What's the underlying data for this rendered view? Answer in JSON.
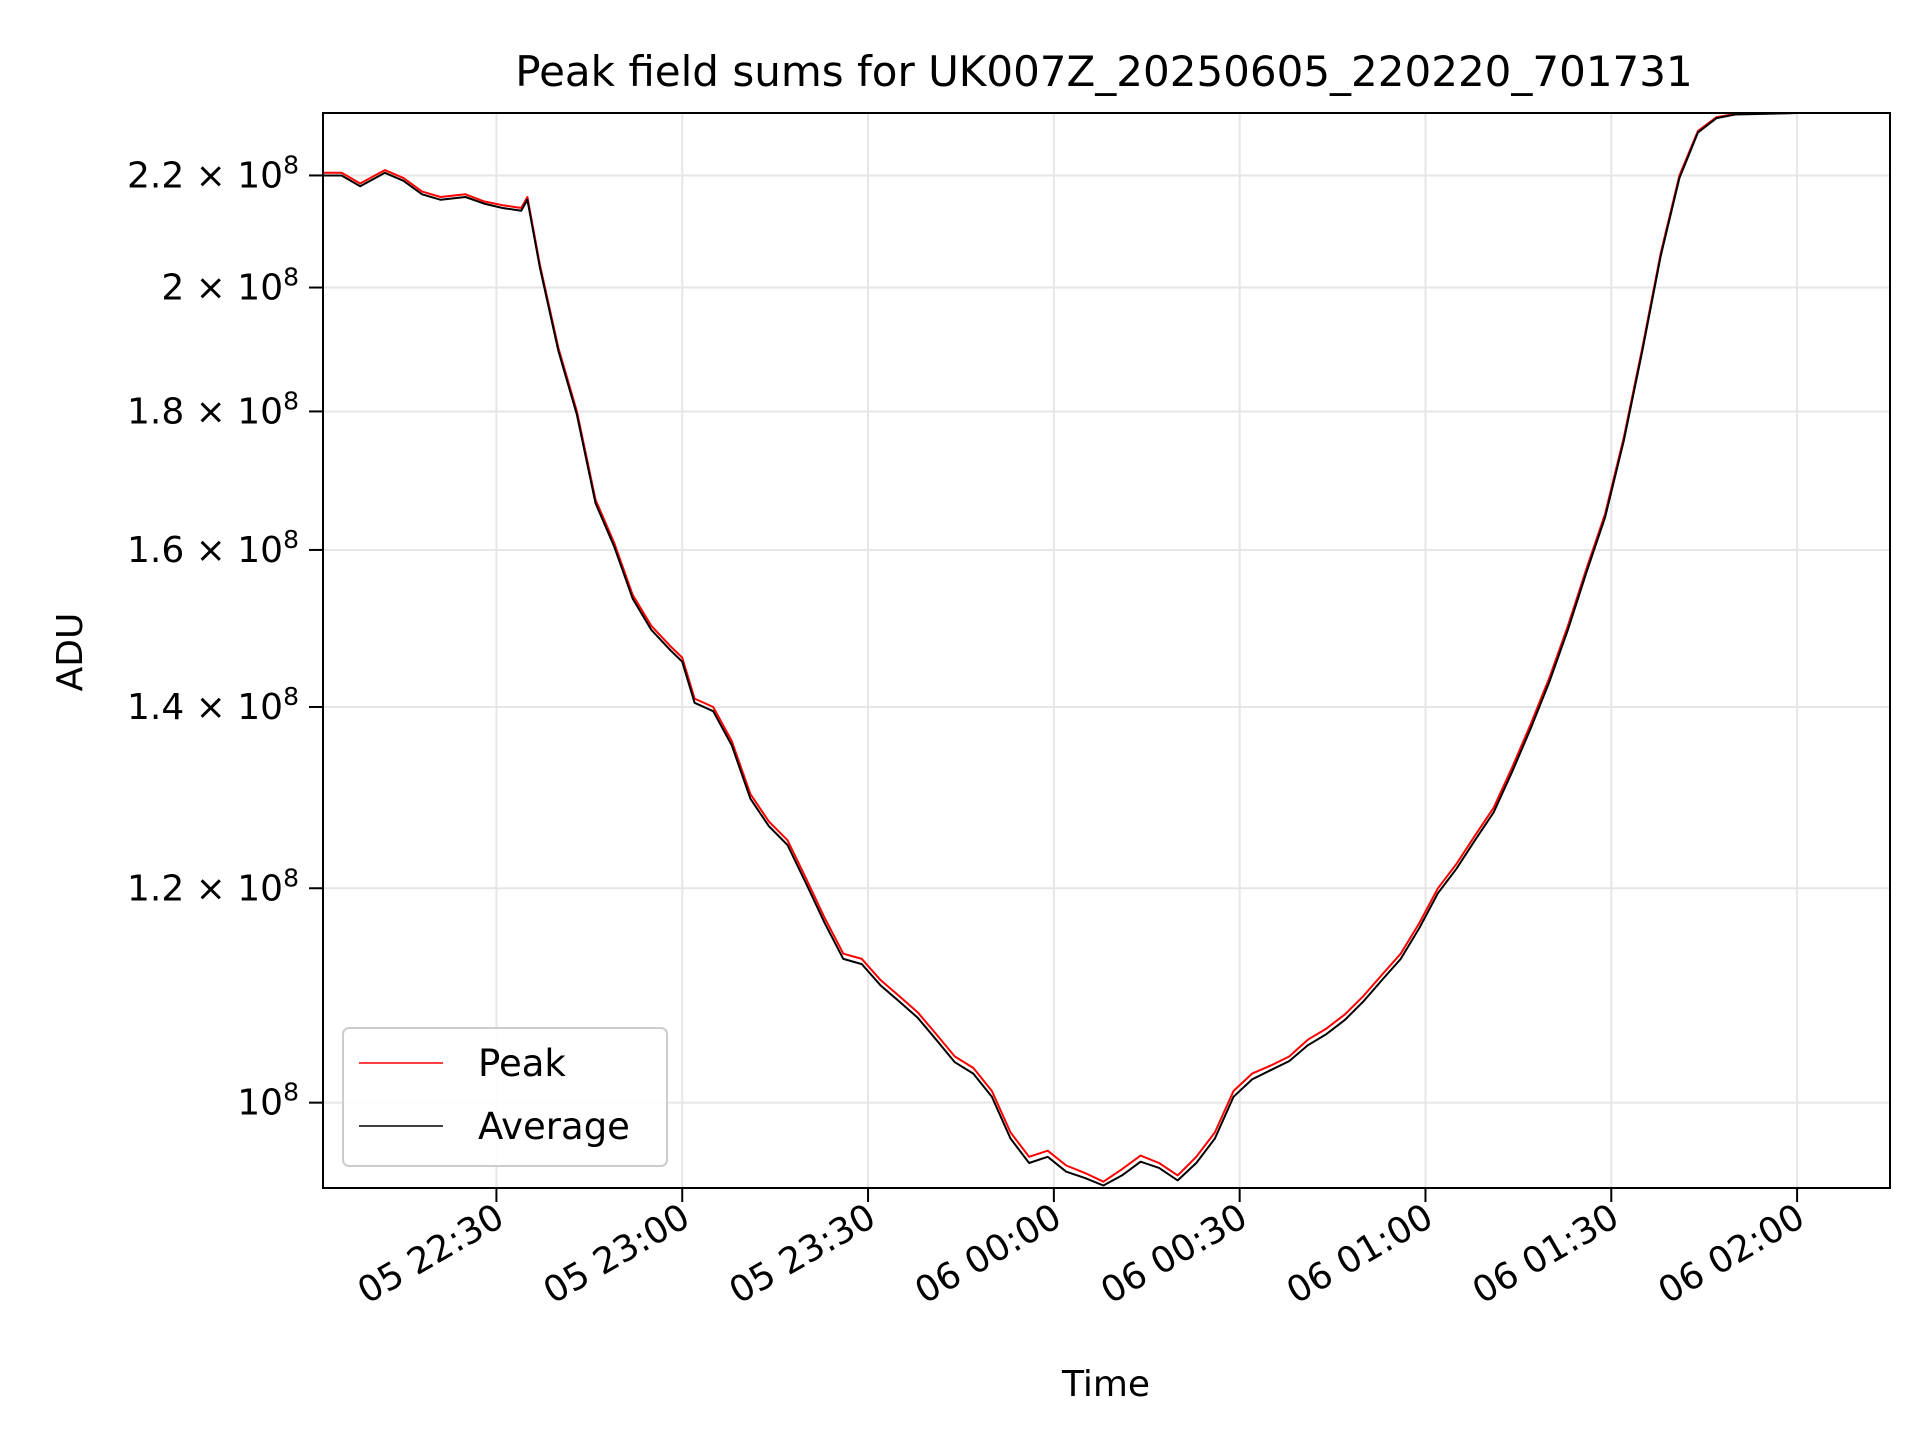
{
  "chart_data": {
    "type": "line",
    "title": "Peak field sums for UK007Z_20250605_220220_701731",
    "xlabel": "Time",
    "ylabel": "ADU",
    "y_scale": "log",
    "ylim": [
      93000000,
      232000000
    ],
    "xlim": [
      "05 22:02",
      "06 02:15"
    ],
    "grid": true,
    "legend_position": "lower-left",
    "x_ticks": [
      {
        "t": "05 22:30",
        "label": "05 22:30"
      },
      {
        "t": "05 23:00",
        "label": "05 23:00"
      },
      {
        "t": "05 23:30",
        "label": "05 23:30"
      },
      {
        "t": "06 00:00",
        "label": "06 00:00"
      },
      {
        "t": "06 00:30",
        "label": "06 00:30"
      },
      {
        "t": "06 01:00",
        "label": "06 01:00"
      },
      {
        "t": "06 01:30",
        "label": "06 01:30"
      },
      {
        "t": "06 02:00",
        "label": "06 02:00"
      }
    ],
    "y_ticks": [
      {
        "value": 100000000,
        "mantissa": "10",
        "exponent": "8"
      },
      {
        "value": 120000000,
        "mantissa": "1.2 × 10",
        "exponent": "8"
      },
      {
        "value": 140000000,
        "mantissa": "1.4 × 10",
        "exponent": "8"
      },
      {
        "value": 160000000,
        "mantissa": "1.6 × 10",
        "exponent": "8"
      },
      {
        "value": 180000000,
        "mantissa": "1.8 × 10",
        "exponent": "8"
      },
      {
        "value": 200000000,
        "mantissa": "2 × 10",
        "exponent": "8"
      },
      {
        "value": 220000000,
        "mantissa": "2.2 × 10",
        "exponent": "8"
      }
    ],
    "series": [
      {
        "name": "Peak",
        "color": "#ff0000",
        "points": [
          [
            "05 22:02",
            220500000
          ],
          [
            "05 22:05",
            220500000
          ],
          [
            "05 22:08",
            218500000
          ],
          [
            "05 22:12",
            221000000
          ],
          [
            "05 22:15",
            219500000
          ],
          [
            "05 22:18",
            217000000
          ],
          [
            "05 22:21",
            216000000
          ],
          [
            "05 22:25",
            216500000
          ],
          [
            "05 22:28",
            215200000
          ],
          [
            "05 22:31",
            214500000
          ],
          [
            "05 22:34",
            214000000
          ],
          [
            "05 22:35",
            216000000
          ],
          [
            "05 22:37",
            204000000
          ],
          [
            "05 22:40",
            190000000
          ],
          [
            "05 22:43",
            180000000
          ],
          [
            "05 22:46",
            167000000
          ],
          [
            "05 22:49",
            161000000
          ],
          [
            "05 22:52",
            154000000
          ],
          [
            "05 22:55",
            150000000
          ],
          [
            "05 22:58",
            147500000
          ],
          [
            "05 23:00",
            146000000
          ],
          [
            "05 23:02",
            141000000
          ],
          [
            "05 23:05",
            140000000
          ],
          [
            "05 23:08",
            136000000
          ],
          [
            "05 23:11",
            130000000
          ],
          [
            "05 23:14",
            127000000
          ],
          [
            "05 23:17",
            125000000
          ],
          [
            "05 23:20",
            121000000
          ],
          [
            "05 23:23",
            117000000
          ],
          [
            "05 23:26",
            113500000
          ],
          [
            "05 23:29",
            113000000
          ],
          [
            "05 23:32",
            111000000
          ],
          [
            "05 23:35",
            109500000
          ],
          [
            "05 23:38",
            108000000
          ],
          [
            "05 23:41",
            106000000
          ],
          [
            "05 23:44",
            104000000
          ],
          [
            "05 23:47",
            103000000
          ],
          [
            "05 23:50",
            101000000
          ],
          [
            "05 23:53",
            97500000
          ],
          [
            "05 23:56",
            95500000
          ],
          [
            "05 23:59",
            96000000
          ],
          [
            "06 00:02",
            94800000
          ],
          [
            "06 00:05",
            94200000
          ],
          [
            "06 00:08",
            93500000
          ],
          [
            "06 00:11",
            94500000
          ],
          [
            "06 00:14",
            95600000
          ],
          [
            "06 00:17",
            95000000
          ],
          [
            "06 00:20",
            94000000
          ],
          [
            "06 00:23",
            95500000
          ],
          [
            "06 00:26",
            97500000
          ],
          [
            "06 00:29",
            101000000
          ],
          [
            "06 00:32",
            102500000
          ],
          [
            "06 00:35",
            103200000
          ],
          [
            "06 00:38",
            104000000
          ],
          [
            "06 00:41",
            105500000
          ],
          [
            "06 00:44",
            106500000
          ],
          [
            "06 00:47",
            107800000
          ],
          [
            "06 00:50",
            109500000
          ],
          [
            "06 00:53",
            111500000
          ],
          [
            "06 00:56",
            113500000
          ],
          [
            "06 00:59",
            116500000
          ],
          [
            "06 01:02",
            120000000
          ],
          [
            "06 01:05",
            122500000
          ],
          [
            "06 01:08",
            125500000
          ],
          [
            "06 01:11",
            128500000
          ],
          [
            "06 01:14",
            133000000
          ],
          [
            "06 01:17",
            138000000
          ],
          [
            "06 01:20",
            143500000
          ],
          [
            "06 01:23",
            150000000
          ],
          [
            "06 01:26",
            157500000
          ],
          [
            "06 01:29",
            165000000
          ],
          [
            "06 01:32",
            176000000
          ],
          [
            "06 01:35",
            190000000
          ],
          [
            "06 01:38",
            206000000
          ],
          [
            "06 01:41",
            220000000
          ],
          [
            "06 01:44",
            228500000
          ],
          [
            "06 01:47",
            231200000
          ],
          [
            "06 01:50",
            231800000
          ],
          [
            "06 02:00",
            232000000
          ]
        ]
      },
      {
        "name": "Average",
        "color": "#000000",
        "points": [
          [
            "05 22:02",
            220000000
          ],
          [
            "05 22:05",
            220000000
          ],
          [
            "05 22:08",
            218000000
          ],
          [
            "05 22:12",
            220500000
          ],
          [
            "05 22:15",
            219000000
          ],
          [
            "05 22:18",
            216500000
          ],
          [
            "05 22:21",
            215500000
          ],
          [
            "05 22:25",
            216000000
          ],
          [
            "05 22:28",
            214800000
          ],
          [
            "05 22:31",
            214000000
          ],
          [
            "05 22:34",
            213500000
          ],
          [
            "05 22:35",
            215500000
          ],
          [
            "05 22:37",
            203500000
          ],
          [
            "05 22:40",
            189500000
          ],
          [
            "05 22:43",
            179500000
          ],
          [
            "05 22:46",
            166500000
          ],
          [
            "05 22:49",
            160500000
          ],
          [
            "05 22:52",
            153500000
          ],
          [
            "05 22:55",
            149500000
          ],
          [
            "05 22:58",
            147000000
          ],
          [
            "05 23:00",
            145500000
          ],
          [
            "05 23:02",
            140500000
          ],
          [
            "05 23:05",
            139500000
          ],
          [
            "05 23:08",
            135500000
          ],
          [
            "05 23:11",
            129500000
          ],
          [
            "05 23:14",
            126500000
          ],
          [
            "05 23:17",
            124500000
          ],
          [
            "05 23:20",
            120500000
          ],
          [
            "05 23:23",
            116500000
          ],
          [
            "05 23:26",
            113000000
          ],
          [
            "05 23:29",
            112500000
          ],
          [
            "05 23:32",
            110500000
          ],
          [
            "05 23:35",
            109000000
          ],
          [
            "05 23:38",
            107500000
          ],
          [
            "05 23:41",
            105500000
          ],
          [
            "05 23:44",
            103500000
          ],
          [
            "05 23:47",
            102500000
          ],
          [
            "05 23:50",
            100500000
          ],
          [
            "05 23:53",
            97000000
          ],
          [
            "05 23:56",
            95000000
          ],
          [
            "05 23:59",
            95500000
          ],
          [
            "06 00:02",
            94300000
          ],
          [
            "06 00:05",
            93800000
          ],
          [
            "06 00:08",
            93200000
          ],
          [
            "06 00:11",
            94000000
          ],
          [
            "06 00:14",
            95100000
          ],
          [
            "06 00:17",
            94600000
          ],
          [
            "06 00:20",
            93600000
          ],
          [
            "06 00:23",
            95000000
          ],
          [
            "06 00:26",
            97000000
          ],
          [
            "06 00:29",
            100500000
          ],
          [
            "06 00:32",
            102000000
          ],
          [
            "06 00:35",
            102800000
          ],
          [
            "06 00:38",
            103600000
          ],
          [
            "06 00:41",
            105000000
          ],
          [
            "06 00:44",
            106000000
          ],
          [
            "06 00:47",
            107300000
          ],
          [
            "06 00:50",
            109000000
          ],
          [
            "06 00:53",
            111000000
          ],
          [
            "06 00:56",
            113000000
          ],
          [
            "06 00:59",
            116000000
          ],
          [
            "06 01:02",
            119500000
          ],
          [
            "06 01:05",
            122000000
          ],
          [
            "06 01:08",
            125000000
          ],
          [
            "06 01:11",
            128000000
          ],
          [
            "06 01:14",
            132500000
          ],
          [
            "06 01:17",
            137500000
          ],
          [
            "06 01:20",
            143000000
          ],
          [
            "06 01:23",
            149500000
          ],
          [
            "06 01:26",
            157000000
          ],
          [
            "06 01:29",
            164500000
          ],
          [
            "06 01:32",
            175500000
          ],
          [
            "06 01:35",
            189500000
          ],
          [
            "06 01:38",
            205500000
          ],
          [
            "06 01:41",
            219500000
          ],
          [
            "06 01:44",
            228200000
          ],
          [
            "06 01:47",
            231000000
          ],
          [
            "06 01:50",
            231700000
          ],
          [
            "06 02:00",
            232000000
          ]
        ]
      }
    ]
  }
}
